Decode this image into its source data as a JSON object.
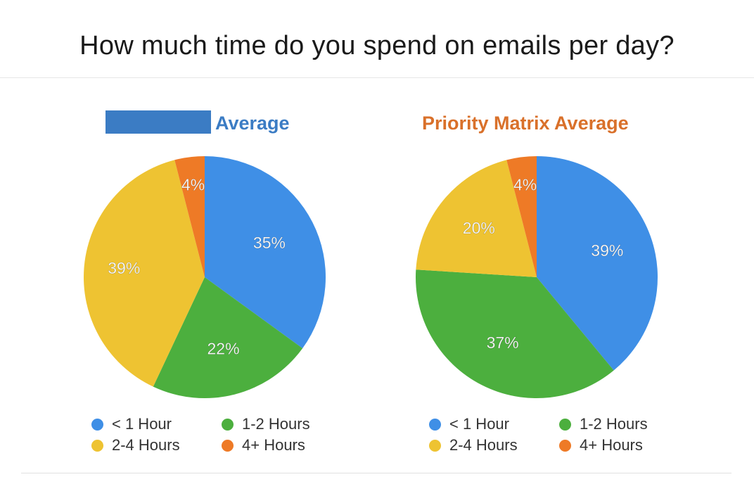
{
  "slide": {
    "title": "How much time do you spend on emails per day?"
  },
  "chart_data": [
    {
      "type": "pie",
      "title": "Average",
      "title_color": "#3b7cc4",
      "title_prefix_redacted": true,
      "categories": [
        "< 1 Hour",
        "1-2 Hours",
        "2-4 Hours",
        "4+ Hours"
      ],
      "values": [
        35,
        22,
        39,
        4
      ],
      "labels": [
        "35%",
        "22%",
        "39%",
        "4%"
      ],
      "colors": [
        "#3f8fe6",
        "#4caf3e",
        "#eec332",
        "#ee7a26"
      ],
      "legend_position": "bottom"
    },
    {
      "type": "pie",
      "title": "Priority Matrix Average",
      "title_color": "#d9702a",
      "categories": [
        "< 1 Hour",
        "1-2 Hours",
        "2-4 Hours",
        "4+ Hours"
      ],
      "values": [
        39,
        37,
        20,
        4
      ],
      "labels": [
        "39%",
        "37%",
        "20%",
        "4%"
      ],
      "colors": [
        "#3f8fe6",
        "#4caf3e",
        "#eec332",
        "#ee7a26"
      ],
      "legend_position": "bottom"
    }
  ]
}
